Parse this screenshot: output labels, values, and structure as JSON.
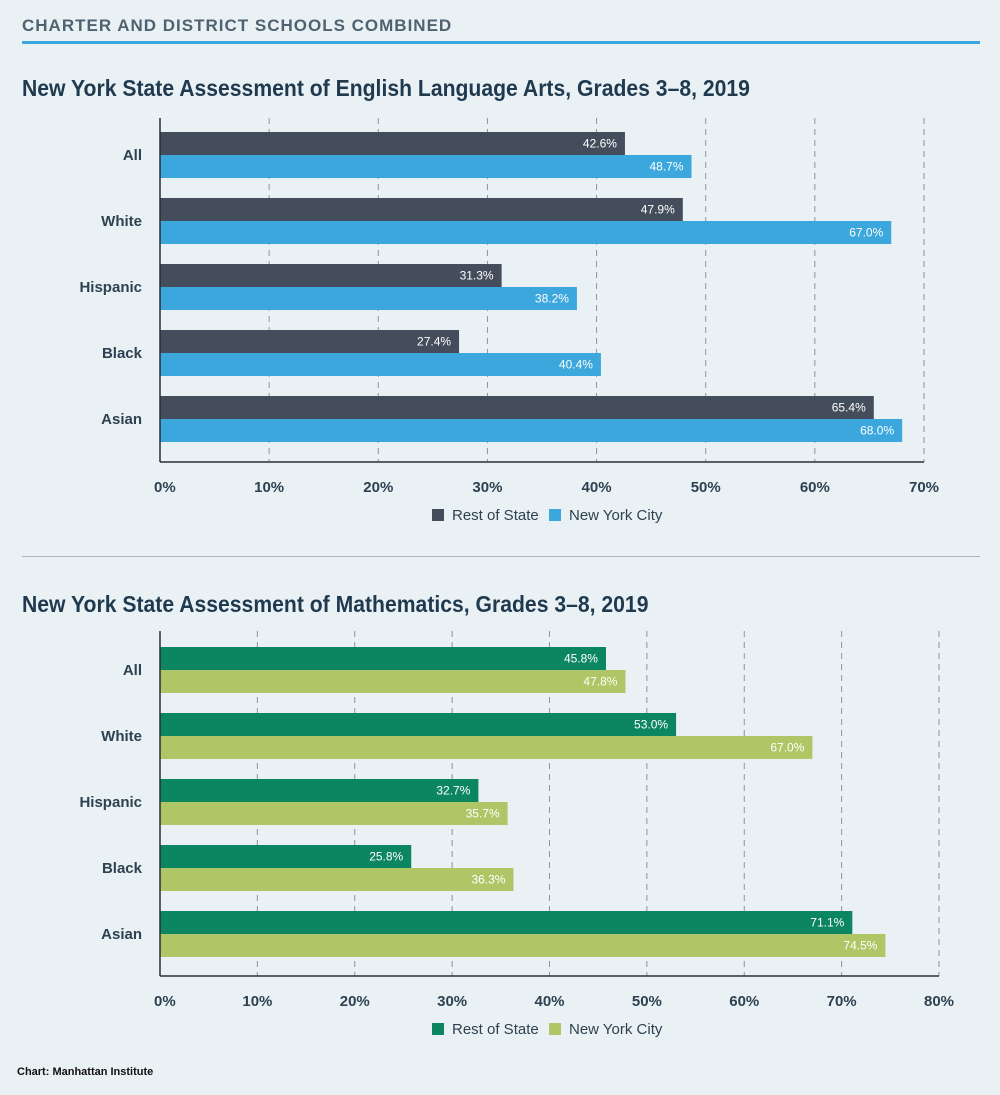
{
  "header": {
    "title": "CHARTER AND DISTRICT SCHOOLS COMBINED"
  },
  "source": "Chart: Manhattan Institute",
  "chart_data": [
    {
      "type": "bar",
      "orientation": "horizontal",
      "title": "New York State Assessment of English Language Arts, Grades 3–8, 2019",
      "categories": [
        "All",
        "White",
        "Hispanic",
        "Black",
        "Asian"
      ],
      "series": [
        {
          "name": "Rest of State",
          "color": "#444d5b",
          "values": [
            42.6,
            47.9,
            31.3,
            27.4,
            65.4
          ]
        },
        {
          "name": "New York City",
          "color": "#3ba7dc",
          "values": [
            48.7,
            67.0,
            38.2,
            40.4,
            68.0
          ]
        }
      ],
      "xlim": [
        0,
        70
      ],
      "xticks": [
        0,
        10,
        20,
        30,
        40,
        50,
        60,
        70
      ],
      "xtick_labels": [
        "0%",
        "10%",
        "20%",
        "30%",
        "40%",
        "50%",
        "60%",
        "70%"
      ],
      "value_labels": [
        [
          "42.6%",
          "47.9%",
          "31.3%",
          "27.4%",
          "65.4%"
        ],
        [
          "48.7%",
          "67.0%",
          "38.2%",
          "40.4%",
          "68.0%"
        ]
      ],
      "grid": "vertical dashed",
      "legend": "bottom-center"
    },
    {
      "type": "bar",
      "orientation": "horizontal",
      "title": "New York State Assessment of Mathematics, Grades 3–8, 2019",
      "categories": [
        "All",
        "White",
        "Hispanic",
        "Black",
        "Asian"
      ],
      "series": [
        {
          "name": "Rest of State",
          "color": "#0c8660",
          "values": [
            45.8,
            53.0,
            32.7,
            25.8,
            71.1
          ]
        },
        {
          "name": "New York City",
          "color": "#aec665",
          "values": [
            47.8,
            67.0,
            35.7,
            36.3,
            74.5
          ]
        }
      ],
      "xlim": [
        0,
        80
      ],
      "xticks": [
        0,
        10,
        20,
        30,
        40,
        50,
        60,
        70,
        80
      ],
      "xtick_labels": [
        "0%",
        "10%",
        "20%",
        "30%",
        "40%",
        "50%",
        "60%",
        "70%",
        "80%"
      ],
      "value_labels": [
        [
          "45.8%",
          "53.0%",
          "32.7%",
          "25.8%",
          "71.1%"
        ],
        [
          "47.8%",
          "67.0%",
          "35.7%",
          "36.3%",
          "74.5%"
        ]
      ],
      "grid": "vertical dashed",
      "legend": "bottom-center"
    }
  ]
}
